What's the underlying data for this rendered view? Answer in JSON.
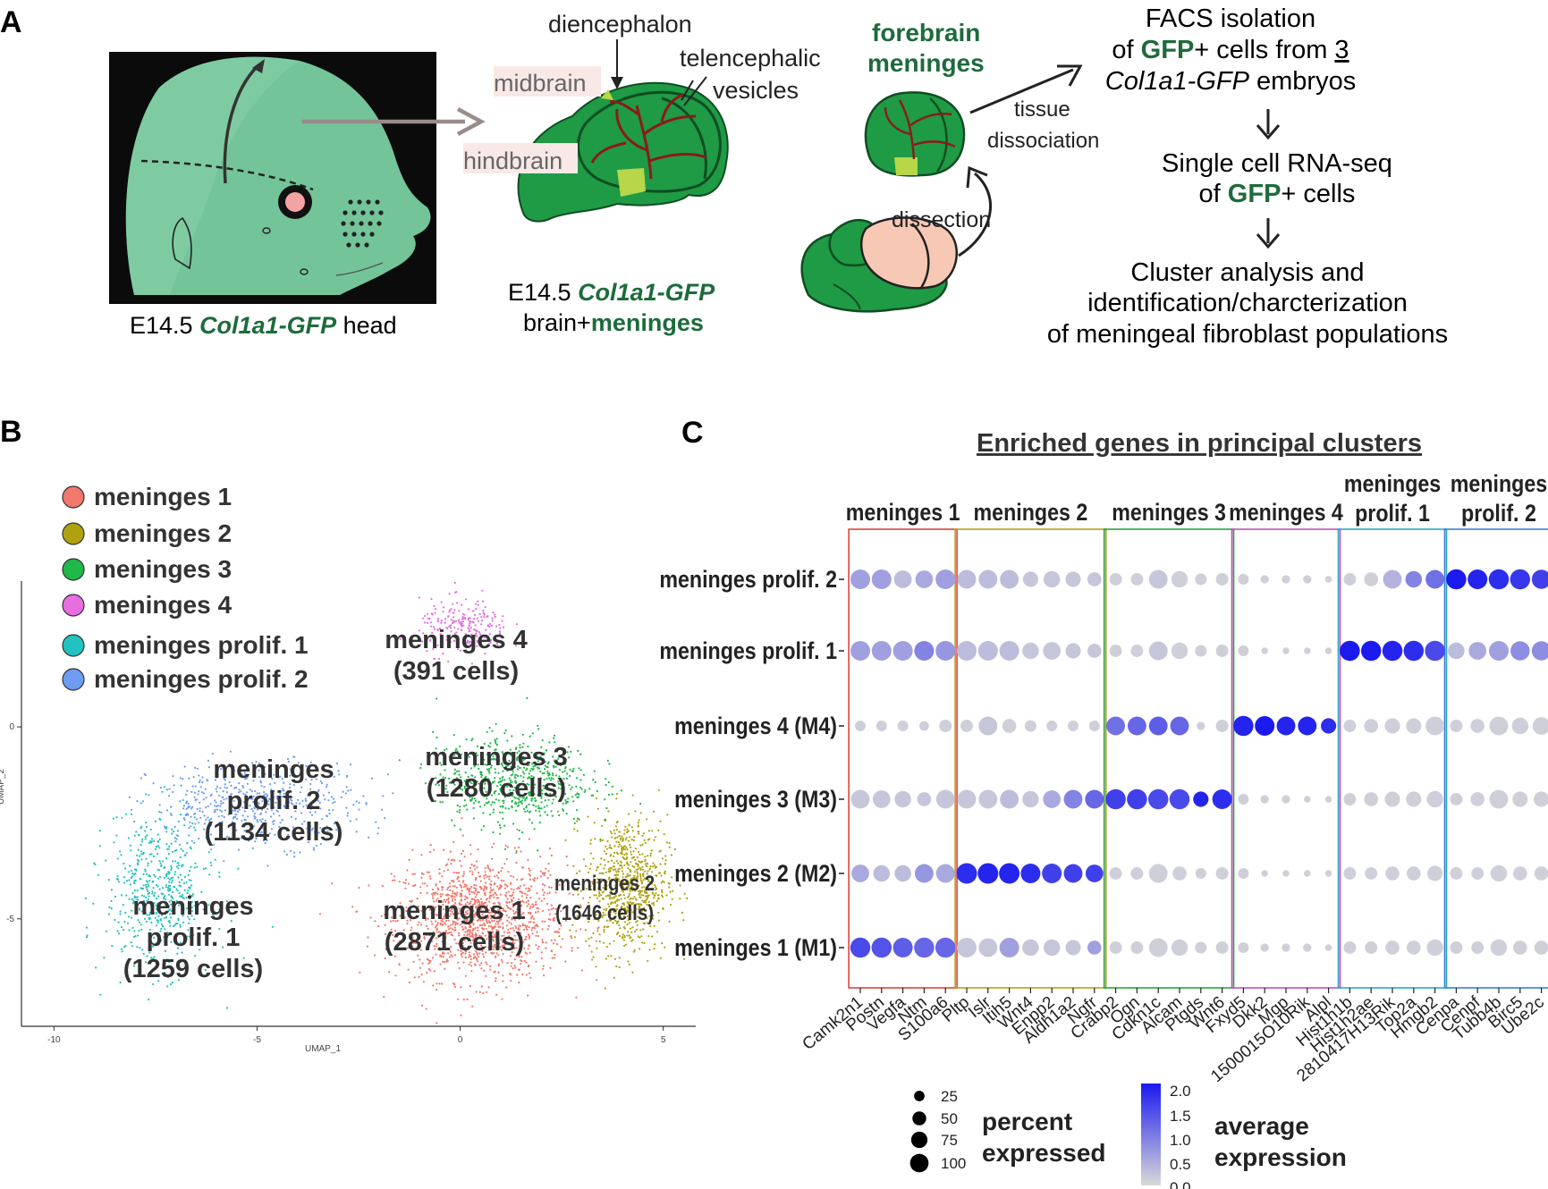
{
  "panel_a": {
    "letter": "A",
    "photo_caption_prefix": "E14.5 ",
    "photo_caption_gene": "Col1a1-GFP",
    "photo_caption_suffix": " head",
    "brain_labels": {
      "diencephalon": "diencephalon",
      "telencephalic": "telencephalic",
      "vesicles": "vesicles",
      "midbrain": "midbrain",
      "hindbrain": "hindbrain"
    },
    "brain_caption_prefix": "E14.5 ",
    "brain_caption_gene": "Col1a1-GFP",
    "brain_caption_line2_prefix": "brain+",
    "brain_caption_line2_bold": "meninges",
    "forebrain": "forebrain",
    "meninges_word": "meninges",
    "tissue": "tissue",
    "dissociation": "dissociation",
    "dissection": "dissection",
    "colors": {
      "gfp_green": "#1f9a45",
      "dark_green": "#1d5c35",
      "photo_green": "#6dbf8f",
      "vessel_red": "#8b1a1a",
      "pink_brain": "#f7c9b5"
    },
    "flow": {
      "line1": "FACS isolation",
      "line2_pre": "of ",
      "line2_bold": "GFP",
      "line2_post": "+ cells from ",
      "line2_num": "3",
      "line3_gene": "Col1a1-GFP",
      "line3_post": " embryos",
      "line4": "Single cell RNA-seq",
      "line5_pre": "of ",
      "line5_bold": "GFP",
      "line5_post": "+ cells",
      "line6": "Cluster analysis and",
      "line7": "identification/charcterization",
      "line8": "of meningeal fibroblast populations"
    }
  },
  "panel_b": {
    "letter": "B",
    "legend": [
      {
        "label": "meninges 1",
        "color": "#f0786c"
      },
      {
        "label": "meninges 2",
        "color": "#b0a20f"
      },
      {
        "label": "meninges 3",
        "color": "#1fb84a"
      },
      {
        "label": "meninges 4",
        "color": "#e66ee0"
      },
      {
        "label": "meninges prolif. 1",
        "color": "#22c2c0"
      },
      {
        "label": "meninges prolif. 2",
        "color": "#6d9cf2"
      }
    ],
    "cluster_labels": [
      {
        "lines": [
          "meninges 4",
          "(391 cells)"
        ]
      },
      {
        "lines": [
          "meninges 3",
          "(1280 cells)"
        ]
      },
      {
        "lines": [
          "meninges",
          "prolif. 2",
          "(1134 cells)"
        ]
      },
      {
        "lines": [
          "meninges 1",
          "(2871 cells)"
        ]
      },
      {
        "lines": [
          "meninges 2",
          "(1646 cells)"
        ]
      },
      {
        "lines": [
          "meninges",
          "prolif. 1",
          "(1259 cells)"
        ]
      }
    ],
    "chart_data": {
      "type": "scatter",
      "xlabel": "UMAP_1",
      "ylabel": "UMAP_2",
      "xticks": [
        -10,
        -5,
        0,
        5
      ],
      "yticks": [
        0,
        -5
      ],
      "xlim": [
        -10.8,
        5.8
      ],
      "ylim": [
        -7.8,
        3.8
      ],
      "clusters": [
        {
          "name": "meninges 1",
          "center": [
            0.5,
            -5.0
          ],
          "spread": [
            2.1,
            1.6
          ],
          "count": 1300
        },
        {
          "name": "meninges 2",
          "center": [
            4.1,
            -4.1
          ],
          "spread": [
            1.0,
            1.8
          ],
          "count": 750
        },
        {
          "name": "meninges 3",
          "center": [
            1.3,
            -1.4
          ],
          "spread": [
            1.9,
            1.2
          ],
          "count": 620
        },
        {
          "name": "meninges 4",
          "center": [
            0.1,
            2.6
          ],
          "spread": [
            1.1,
            0.7
          ],
          "count": 220
        },
        {
          "name": "meninges prolif. 1",
          "center": [
            -7.4,
            -4.3
          ],
          "spread": [
            1.3,
            2.0
          ],
          "count": 560
        },
        {
          "name": "meninges prolif. 2",
          "center": [
            -5.0,
            -2.0
          ],
          "spread": [
            2.6,
            1.1
          ],
          "count": 520
        }
      ]
    }
  },
  "panel_c": {
    "letter": "C",
    "title": "Enriched genes in principal clusters",
    "groups": [
      {
        "label_lines": [
          "meninges 1"
        ],
        "color": "#e0433a",
        "genes": [
          "Camk2n1",
          "Postn",
          "Vegfa",
          "Ntm",
          "S100a6"
        ]
      },
      {
        "label_lines": [
          "meninges 2"
        ],
        "color": "#b59f1a",
        "genes": [
          "Pltp",
          "Islr",
          "Itih5",
          "Wnt4",
          "Enpp2",
          "Aldh1a2",
          "Ngfr"
        ]
      },
      {
        "label_lines": [
          "meninges 3"
        ],
        "color": "#29a43b",
        "genes": [
          "Crabp2",
          "Ogn",
          "Cdkn1c",
          "Alcam",
          "Ptgds",
          "Wnt6"
        ]
      },
      {
        "label_lines": [
          "meninges 4"
        ],
        "color": "#c050c0",
        "genes": [
          "Fxyd5",
          "Dkk2",
          "Mgp",
          "1500015O10Rik",
          "Alpl"
        ]
      },
      {
        "label_lines": [
          "meninges",
          "prolif. 1"
        ],
        "color": "#2aa7c9",
        "genes": [
          "Hist1h1b",
          "Hist1h2ae",
          "2810417H13Rik",
          "Top2a",
          "Hmgb2"
        ]
      },
      {
        "label_lines": [
          "meninges",
          "prolif. 2"
        ],
        "color": "#3b7fd4",
        "genes": [
          "Cenpa",
          "Cenpf",
          "Tubb4b",
          "Birc5",
          "Ube2c"
        ]
      }
    ],
    "size_legend": {
      "title_lines": [
        "percent",
        "expressed"
      ],
      "values": [
        25,
        50,
        75,
        100
      ]
    },
    "color_legend": {
      "title_lines": [
        "average",
        "expression"
      ],
      "ticks": [
        "2.0",
        "1.5",
        "1.0",
        "0.5",
        "0.0"
      ],
      "low_color": "#d9d9d9",
      "high_color": "#1a1aef"
    },
    "chart_data": {
      "type": "dotplot",
      "rows": [
        "meninges prolif. 2",
        "meninges prolif. 1",
        "meninges 4 (M4)",
        "meninges 3 (M3)",
        "meninges 2 (M2)",
        "meninges 1 (M1)"
      ],
      "columns": [
        "Camk2n1",
        "Postn",
        "Vegfa",
        "Ntm",
        "S100a6",
        "Pltp",
        "Islr",
        "Itih5",
        "Wnt4",
        "Enpp2",
        "Aldh1a2",
        "Ngfr",
        "Crabp2",
        "Ogn",
        "Cdkn1c",
        "Alcam",
        "Ptgds",
        "Wnt6",
        "Fxyd5",
        "Dkk2",
        "Mgp",
        "1500015O10Rik",
        "Alpl",
        "Hist1h1b",
        "Hist1h2ae",
        "2810417H13Rik",
        "Top2a",
        "Hmgb2",
        "Cenpa",
        "Cenpf",
        "Tubb4b",
        "Birc5",
        "Ube2c"
      ],
      "percent_expressed": [
        [
          90,
          90,
          70,
          70,
          90,
          80,
          80,
          80,
          50,
          60,
          50,
          40,
          30,
          30,
          80,
          60,
          25,
          30,
          20,
          10,
          10,
          10,
          5,
          30,
          40,
          80,
          60,
          80,
          95,
          90,
          95,
          95,
          85
        ],
        [
          90,
          90,
          90,
          90,
          90,
          90,
          90,
          90,
          60,
          70,
          50,
          40,
          30,
          30,
          80,
          60,
          25,
          30,
          20,
          5,
          5,
          5,
          5,
          95,
          95,
          95,
          95,
          95,
          60,
          70,
          90,
          85,
          85
        ],
        [
          20,
          20,
          20,
          15,
          30,
          30,
          80,
          40,
          25,
          20,
          20,
          20,
          80,
          80,
          80,
          80,
          10,
          30,
          95,
          90,
          80,
          80,
          50,
          30,
          40,
          50,
          50,
          80,
          30,
          40,
          80,
          60,
          70
        ],
        [
          80,
          70,
          60,
          40,
          80,
          80,
          80,
          80,
          60,
          70,
          80,
          80,
          95,
          95,
          95,
          95,
          50,
          90,
          20,
          10,
          10,
          5,
          5,
          30,
          40,
          50,
          50,
          60,
          30,
          40,
          80,
          50,
          50
        ],
        [
          70,
          60,
          60,
          80,
          80,
          100,
          100,
          100,
          90,
          90,
          80,
          70,
          30,
          30,
          80,
          40,
          20,
          30,
          20,
          5,
          5,
          5,
          5,
          30,
          30,
          40,
          40,
          50,
          30,
          30,
          60,
          40,
          40
        ],
        [
          95,
          95,
          90,
          95,
          95,
          90,
          80,
          90,
          60,
          60,
          50,
          40,
          30,
          30,
          80,
          60,
          25,
          30,
          20,
          10,
          10,
          10,
          5,
          30,
          30,
          40,
          40,
          60,
          30,
          30,
          60,
          40,
          40
        ]
      ],
      "average_expression": [
        [
          0.6,
          0.6,
          0.3,
          0.5,
          0.6,
          0.3,
          0.3,
          0.3,
          0.2,
          0.2,
          0.2,
          0.2,
          0.1,
          0.1,
          0.2,
          0.1,
          0.1,
          0.1,
          0.1,
          0.1,
          0.1,
          0.1,
          0.1,
          0.1,
          0.1,
          0.4,
          0.9,
          1.1,
          2.0,
          1.9,
          1.8,
          1.7,
          1.6
        ],
        [
          0.6,
          0.6,
          0.6,
          0.9,
          0.7,
          0.3,
          0.3,
          0.3,
          0.2,
          0.2,
          0.2,
          0.2,
          0.1,
          0.1,
          0.2,
          0.1,
          0.1,
          0.1,
          0.1,
          0.1,
          0.1,
          0.1,
          0.1,
          2.0,
          2.0,
          1.9,
          1.8,
          1.5,
          0.3,
          0.5,
          0.6,
          0.8,
          0.8
        ],
        [
          0.1,
          0.1,
          0.1,
          0.1,
          0.1,
          0.1,
          0.2,
          0.1,
          0.1,
          0.1,
          0.1,
          0.1,
          1.1,
          1.2,
          1.3,
          1.2,
          0.1,
          0.1,
          1.9,
          2.0,
          1.9,
          1.9,
          1.8,
          0.1,
          0.1,
          0.1,
          0.1,
          0.1,
          0.1,
          0.1,
          0.1,
          0.1,
          0.1
        ],
        [
          0.2,
          0.2,
          0.2,
          0.2,
          0.2,
          0.2,
          0.2,
          0.3,
          0.2,
          0.5,
          0.9,
          1.2,
          1.6,
          1.6,
          1.5,
          1.5,
          1.9,
          1.8,
          0.1,
          0.1,
          0.1,
          0.1,
          0.1,
          0.1,
          0.1,
          0.1,
          0.1,
          0.1,
          0.1,
          0.1,
          0.1,
          0.1,
          0.1
        ],
        [
          0.5,
          0.3,
          0.3,
          0.7,
          0.5,
          1.8,
          1.9,
          1.9,
          1.8,
          1.6,
          1.6,
          1.6,
          0.1,
          0.1,
          0.1,
          0.1,
          0.1,
          0.1,
          0.1,
          0.1,
          0.1,
          0.1,
          0.1,
          0.1,
          0.1,
          0.1,
          0.1,
          0.1,
          0.1,
          0.1,
          0.1,
          0.1,
          0.1
        ],
        [
          1.5,
          1.4,
          1.3,
          1.2,
          1.2,
          0.2,
          0.2,
          0.6,
          0.2,
          0.2,
          0.2,
          0.6,
          0.1,
          0.1,
          0.1,
          0.1,
          0.1,
          0.1,
          0.1,
          0.1,
          0.1,
          0.1,
          0.1,
          0.1,
          0.1,
          0.1,
          0.1,
          0.1,
          0.1,
          0.1,
          0.1,
          0.1,
          0.1
        ]
      ],
      "color_range": [
        0.0,
        2.0
      ],
      "size_range": [
        0,
        100
      ]
    }
  }
}
